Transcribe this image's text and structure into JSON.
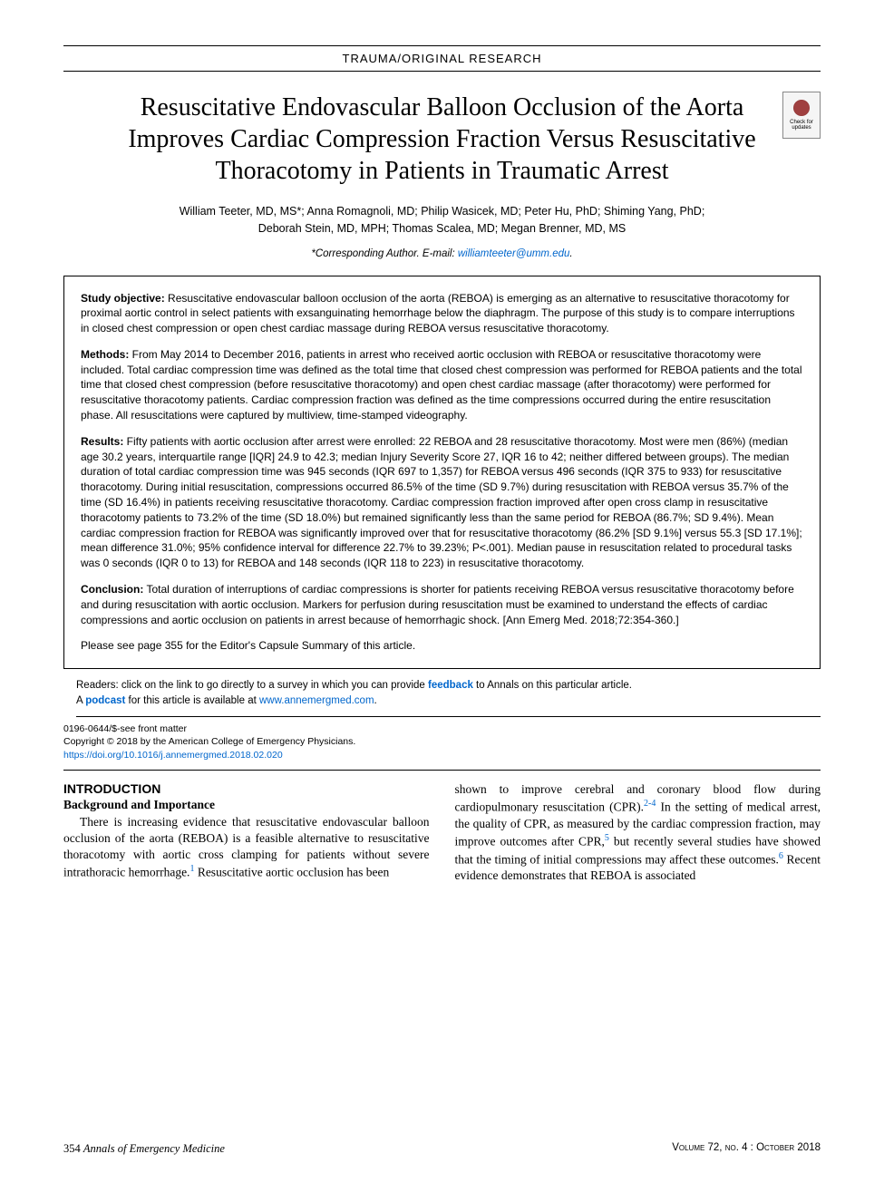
{
  "header": {
    "section": "TRAUMA/ORIGINAL RESEARCH"
  },
  "title": "Resuscitative Endovascular Balloon Occlusion of the Aorta Improves Cardiac Compression Fraction Versus Resuscitative Thoracotomy in Patients in Traumatic Arrest",
  "check_updates_label": "Check for updates",
  "authors_line1": "William Teeter, MD, MS*; Anna Romagnoli, MD; Philip Wasicek, MD; Peter Hu, PhD; Shiming Yang, PhD;",
  "authors_line2": "Deborah Stein, MD, MPH; Thomas Scalea, MD; Megan Brenner, MD, MS",
  "corresponding_prefix": "*Corresponding Author. E-mail: ",
  "corresponding_email": "williamteeter@umm.edu",
  "abstract": {
    "objective_label": "Study objective:",
    "objective": " Resuscitative endovascular balloon occlusion of the aorta (REBOA) is emerging as an alternative to resuscitative thoracotomy for proximal aortic control in select patients with exsanguinating hemorrhage below the diaphragm. The purpose of this study is to compare interruptions in closed chest compression or open chest cardiac massage during REBOA versus resuscitative thoracotomy.",
    "methods_label": "Methods:",
    "methods": " From May 2014 to December 2016, patients in arrest who received aortic occlusion with REBOA or resuscitative thoracotomy were included. Total cardiac compression time was defined as the total time that closed chest compression was performed for REBOA patients and the total time that closed chest compression (before resuscitative thoracotomy) and open chest cardiac massage (after thoracotomy) were performed for resuscitative thoracotomy patients. Cardiac compression fraction was defined as the time compressions occurred during the entire resuscitation phase. All resuscitations were captured by multiview, time-stamped videography.",
    "results_label": "Results:",
    "results": " Fifty patients with aortic occlusion after arrest were enrolled: 22 REBOA and 28 resuscitative thoracotomy. Most were men (86%) (median age 30.2 years, interquartile range [IQR] 24.9 to 42.3; median Injury Severity Score 27, IQR 16 to 42; neither differed between groups). The median duration of total cardiac compression time was 945 seconds (IQR 697 to 1,357) for REBOA versus 496 seconds (IQR 375 to 933) for resuscitative thoracotomy. During initial resuscitation, compressions occurred 86.5% of the time (SD 9.7%) during resuscitation with REBOA versus 35.7% of the time (SD 16.4%) in patients receiving resuscitative thoracotomy. Cardiac compression fraction improved after open cross clamp in resuscitative thoracotomy patients to 73.2% of the time (SD 18.0%) but remained significantly less than the same period for REBOA (86.7%; SD 9.4%). Mean cardiac compression fraction for REBOA was significantly improved over that for resuscitative thoracotomy (86.2% [SD 9.1%] versus 55.3 [SD 17.1%]; mean difference 31.0%; 95% confidence interval for difference 22.7% to 39.23%; P<.001). Median pause in resuscitation related to procedural tasks was 0 seconds (IQR 0 to 13) for REBOA and 148 seconds (IQR 118 to 223) in resuscitative thoracotomy.",
    "conclusion_label": "Conclusion:",
    "conclusion": " Total duration of interruptions of cardiac compressions is shorter for patients receiving REBOA versus resuscitative thoracotomy before and during resuscitation with aortic occlusion. Markers for perfusion during resuscitation must be examined to understand the effects of cardiac compressions and aortic occlusion on patients in arrest because of hemorrhagic shock. [Ann Emerg Med. 2018;72:354-360.]",
    "capsule": "Please see page 355 for the Editor's Capsule Summary of this article."
  },
  "readers": {
    "line1_pre": "Readers: click on the link to go directly to a survey in which you can provide ",
    "feedback": "feedback",
    "line1_post": " to Annals on this particular article.",
    "line2_pre": "A ",
    "podcast": "podcast",
    "line2_mid": " for this article is available at ",
    "url": "www.annemergmed.com",
    "line2_post": "."
  },
  "front_matter": {
    "issn": "0196-0644/$-see front matter",
    "copyright": "Copyright © 2018 by the American College of Emergency Physicians.",
    "doi": "https://doi.org/10.1016/j.annemergmed.2018.02.020"
  },
  "body": {
    "intro_heading": "INTRODUCTION",
    "sub_heading": "Background and Importance",
    "col1_p1_a": "There is increasing evidence that resuscitative endovascular balloon occlusion of the aorta (REBOA) is a feasible alternative to resuscitative thoracotomy with aortic cross clamping for patients without severe intrathoracic hemorrhage.",
    "cite1": "1",
    "col1_p1_b": " Resuscitative aortic occlusion has been",
    "col2_a": "shown to improve cerebral and coronary blood flow during cardiopulmonary resuscitation (CPR).",
    "cite24": "2-4",
    "col2_b": " In the setting of medical arrest, the quality of CPR, as measured by the cardiac compression fraction, may improve outcomes after CPR,",
    "cite5": "5",
    "col2_c": " but recently several studies have showed that the timing of initial compressions may affect these outcomes.",
    "cite6": "6",
    "col2_d": " Recent evidence demonstrates that REBOA is associated"
  },
  "footer": {
    "page": "354",
    "journal": "Annals of Emergency Medicine",
    "issue": "Volume 72, no. 4 : October 2018"
  }
}
